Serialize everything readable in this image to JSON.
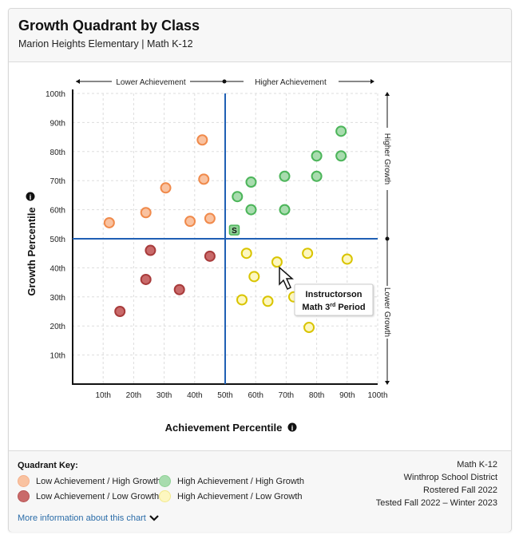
{
  "header": {
    "title": "Growth Quadrant by Class",
    "subtitle": "Marion Heights Elementary | Math K-12"
  },
  "chart_data": {
    "type": "scatter",
    "xlabel": "Achievement Percentile",
    "ylabel": "Growth Percentile",
    "xlim": [
      0,
      100
    ],
    "ylim": [
      0,
      100
    ],
    "x_ticks": [
      "10th",
      "20th",
      "30th",
      "40th",
      "50th",
      "60th",
      "70th",
      "80th",
      "90th",
      "100th"
    ],
    "y_ticks": [
      "10th",
      "20th",
      "30th",
      "40th",
      "50th",
      "60th",
      "70th",
      "80th",
      "90th",
      "100th"
    ],
    "grid": true,
    "quadrant_lines": {
      "x": 50,
      "y": 50,
      "color": "#1f5fb4"
    },
    "top_labels": {
      "left": "Lower Achievement",
      "right": "Higher Achievement"
    },
    "side_labels": {
      "top": "Higher Growth",
      "bottom": "Lower Growth"
    },
    "series": [
      {
        "name": "Low Achievement / High Growth",
        "fill": "#f9c2a0",
        "stroke": "#f08a4b",
        "points": [
          [
            12,
            55.5
          ],
          [
            24,
            59
          ],
          [
            30.5,
            67.5
          ],
          [
            42.5,
            84
          ],
          [
            43,
            70.5
          ],
          [
            38.5,
            56
          ],
          [
            45,
            57
          ]
        ]
      },
      {
        "name": "High Achievement / High Growth",
        "fill": "#a8dcae",
        "stroke": "#4cb55a",
        "points": [
          [
            54,
            64.5
          ],
          [
            58.5,
            69.5
          ],
          [
            58.5,
            60
          ],
          [
            69.5,
            71.5
          ],
          [
            69.5,
            60
          ],
          [
            80,
            78.5
          ],
          [
            80,
            71.5
          ],
          [
            88,
            87
          ],
          [
            88,
            78.5
          ]
        ]
      },
      {
        "name": "Low Achievement / Low Growth",
        "fill": "#c96a6a",
        "stroke": "#a83b3b",
        "points": [
          [
            25.5,
            46
          ],
          [
            24,
            36
          ],
          [
            35,
            32.5
          ],
          [
            15.5,
            25
          ],
          [
            45,
            44
          ]
        ]
      },
      {
        "name": "High Achievement / Low Growth",
        "fill": "#fdf7c0",
        "stroke": "#d9c400",
        "points": [
          [
            57,
            45
          ],
          [
            67,
            42
          ],
          [
            59.5,
            37
          ],
          [
            77,
            45
          ],
          [
            90,
            43
          ],
          [
            55.5,
            29
          ],
          [
            64,
            28.5
          ],
          [
            72.5,
            30
          ],
          [
            77.5,
            19.5
          ]
        ]
      }
    ],
    "school_marker": {
      "label": "S",
      "x": 53,
      "y": 53
    },
    "tooltip": {
      "line1": "Instructorson",
      "line2_pre": "Math 3",
      "line2_sup": "rd",
      "line2_post": " Period"
    }
  },
  "footer": {
    "key_title": "Quadrant  Key:",
    "more_link": "More information about this chart",
    "meta": [
      "Math K-12",
      "Winthrop School District",
      "Rostered Fall 2022",
      "Tested Fall 2022 – Winter 2023"
    ]
  }
}
